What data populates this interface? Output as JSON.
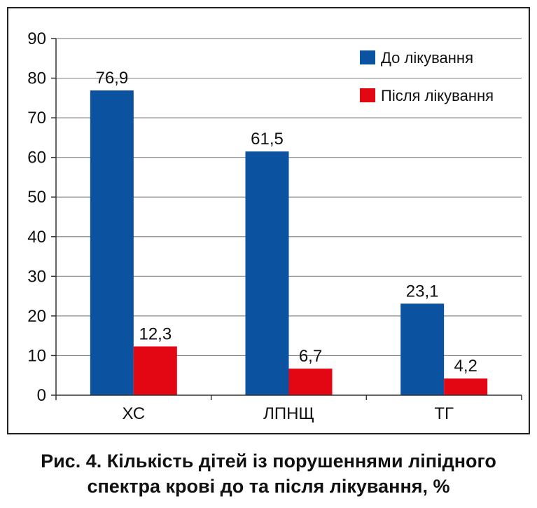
{
  "chart_data": {
    "type": "bar",
    "categories": [
      "ХС",
      "ЛПНЩ",
      "ТГ"
    ],
    "series": [
      {
        "name": "До лікування",
        "values": [
          76.9,
          61.5,
          23.1
        ],
        "labels": [
          "76,9",
          "61,5",
          "23,1"
        ],
        "color": "#0b52a0"
      },
      {
        "name": "Після лікування",
        "values": [
          12.3,
          6.7,
          4.2
        ],
        "labels": [
          "12,3",
          "6,7",
          "4,2"
        ],
        "color": "#e30613"
      }
    ],
    "ylim": [
      0,
      90
    ],
    "yticks": [
      0,
      10,
      20,
      30,
      40,
      50,
      60,
      70,
      80,
      90
    ],
    "grid": true,
    "legend": "top-right"
  },
  "caption": {
    "line1": "Рис. 4. Кількість дітей із порушеннями ліпідного",
    "line2": "спектра крові до та після лікування, %"
  }
}
